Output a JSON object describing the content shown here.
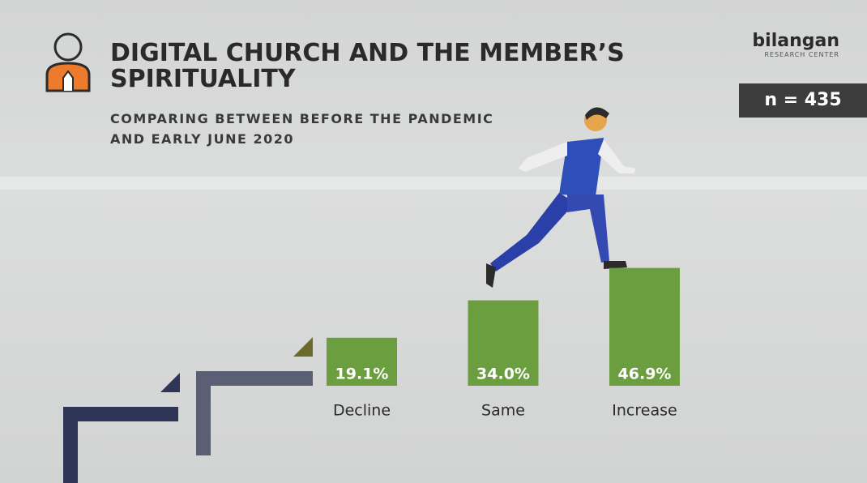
{
  "chart_data": {
    "type": "bar",
    "title": "DIGITAL CHURCH AND THE MEMBER’S SPIRITUALITY",
    "subtitle": "COMPARING BETWEEN BEFORE THE PANDEMIC AND EARLY JUNE 2020",
    "sample_size": "n = 435",
    "logo": {
      "name": "bilangan",
      "tagline": "RESEARCH CENTER"
    },
    "categories": [
      "Decline",
      "Same",
      "Increase"
    ],
    "values": [
      19.1,
      34.0,
      46.9
    ],
    "value_labels": [
      "19.1%",
      "34.0%",
      "46.9%"
    ],
    "color": "#6b9e3e"
  }
}
